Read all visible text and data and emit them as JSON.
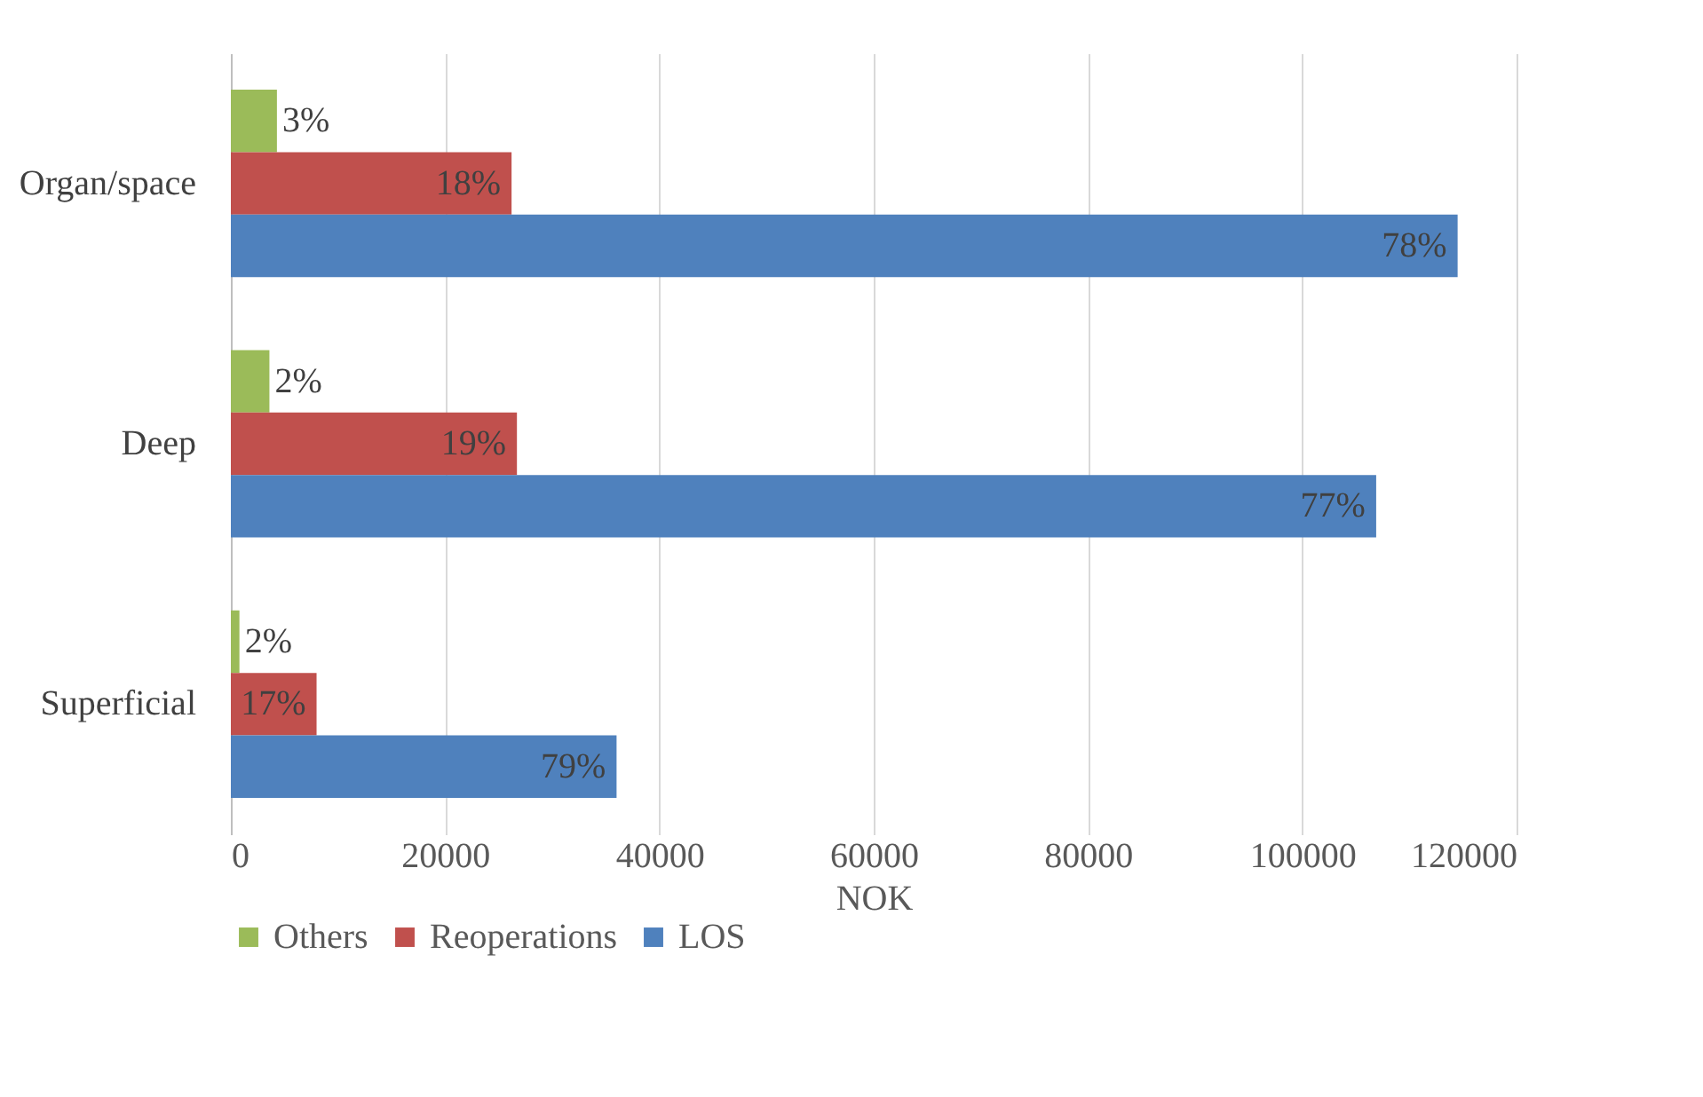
{
  "chart_data": {
    "type": "bar",
    "orientation": "horizontal",
    "xlabel": "NOK",
    "categories": [
      "Organ/space",
      "Deep",
      "Superficial"
    ],
    "series": [
      {
        "name": "Others",
        "color": "#9bbb59",
        "values": [
          4300,
          3600,
          800
        ]
      },
      {
        "name": "Reoperations",
        "color": "#c0504d",
        "values": [
          26200,
          26700,
          8000
        ]
      },
      {
        "name": "LOS",
        "color": "#4f81bd",
        "values": [
          114500,
          106900,
          36000
        ]
      }
    ],
    "annotations": [
      "3%",
      "18%",
      "78%",
      "2%",
      "19%",
      "77%",
      "2%",
      "17%",
      "79%"
    ],
    "xlim": [
      0,
      120000
    ],
    "xticks": [
      0,
      20000,
      40000,
      60000,
      80000,
      100000,
      120000
    ],
    "grid": "x",
    "legend": "bottom"
  }
}
